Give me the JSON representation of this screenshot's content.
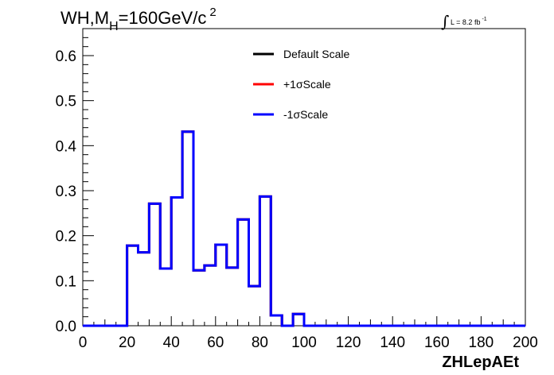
{
  "chart_data": {
    "type": "line",
    "title": "WH,M",
    "title_sub": "H",
    "title_rest": "=160GeV/c",
    "title_sup": "2",
    "lumi_label": "L = 8.2 fb",
    "lumi_sup": "-1",
    "xlabel": "ZHLepAEt",
    "ylabel": "",
    "xlim": [
      0,
      200
    ],
    "ylim": [
      0,
      0.66
    ],
    "x_ticks": [
      "0",
      "20",
      "40",
      "60",
      "80",
      "100",
      "120",
      "140",
      "160",
      "180",
      "200"
    ],
    "y_ticks": [
      "0.0",
      "0.1",
      "0.2",
      "0.3",
      "0.4",
      "0.5",
      "0.6"
    ],
    "legend_position": "top-center",
    "bin_width": 5,
    "bin_edges": [
      0,
      5,
      10,
      15,
      20,
      25,
      30,
      35,
      40,
      45,
      50,
      55,
      60,
      65,
      70,
      75,
      80,
      85,
      90,
      95,
      100,
      105,
      110,
      115,
      120,
      125,
      130,
      135,
      140,
      145,
      150,
      155,
      160,
      165,
      170,
      175,
      180,
      185,
      190,
      195,
      200
    ],
    "series": [
      {
        "name": "Default Scale",
        "color": "#000000",
        "values": [
          0,
          0,
          0,
          0,
          0.178,
          0.163,
          0.271,
          0.127,
          0.285,
          0.431,
          0.123,
          0.134,
          0.18,
          0.129,
          0.236,
          0.088,
          0.287,
          0.023,
          0,
          0.026,
          0,
          0,
          0,
          0,
          0,
          0,
          0,
          0,
          0,
          0,
          0,
          0,
          0,
          0,
          0,
          0,
          0,
          0,
          0,
          0
        ]
      },
      {
        "name": "+1σScale",
        "color": "#ff0000",
        "values": [
          0,
          0,
          0,
          0,
          0.178,
          0.163,
          0.271,
          0.127,
          0.285,
          0.431,
          0.123,
          0.134,
          0.18,
          0.129,
          0.236,
          0.088,
          0.287,
          0.023,
          0,
          0.026,
          0,
          0,
          0,
          0,
          0,
          0,
          0,
          0,
          0,
          0,
          0,
          0,
          0,
          0,
          0,
          0,
          0,
          0,
          0,
          0
        ]
      },
      {
        "name": "-1σScale",
        "color": "#0000ff",
        "values": [
          0,
          0,
          0,
          0,
          0.178,
          0.163,
          0.271,
          0.127,
          0.285,
          0.431,
          0.123,
          0.134,
          0.18,
          0.129,
          0.236,
          0.088,
          0.287,
          0.023,
          0,
          0.026,
          0,
          0,
          0,
          0,
          0,
          0,
          0,
          0,
          0,
          0,
          0,
          0,
          0,
          0,
          0,
          0,
          0,
          0,
          0,
          0
        ]
      }
    ]
  }
}
